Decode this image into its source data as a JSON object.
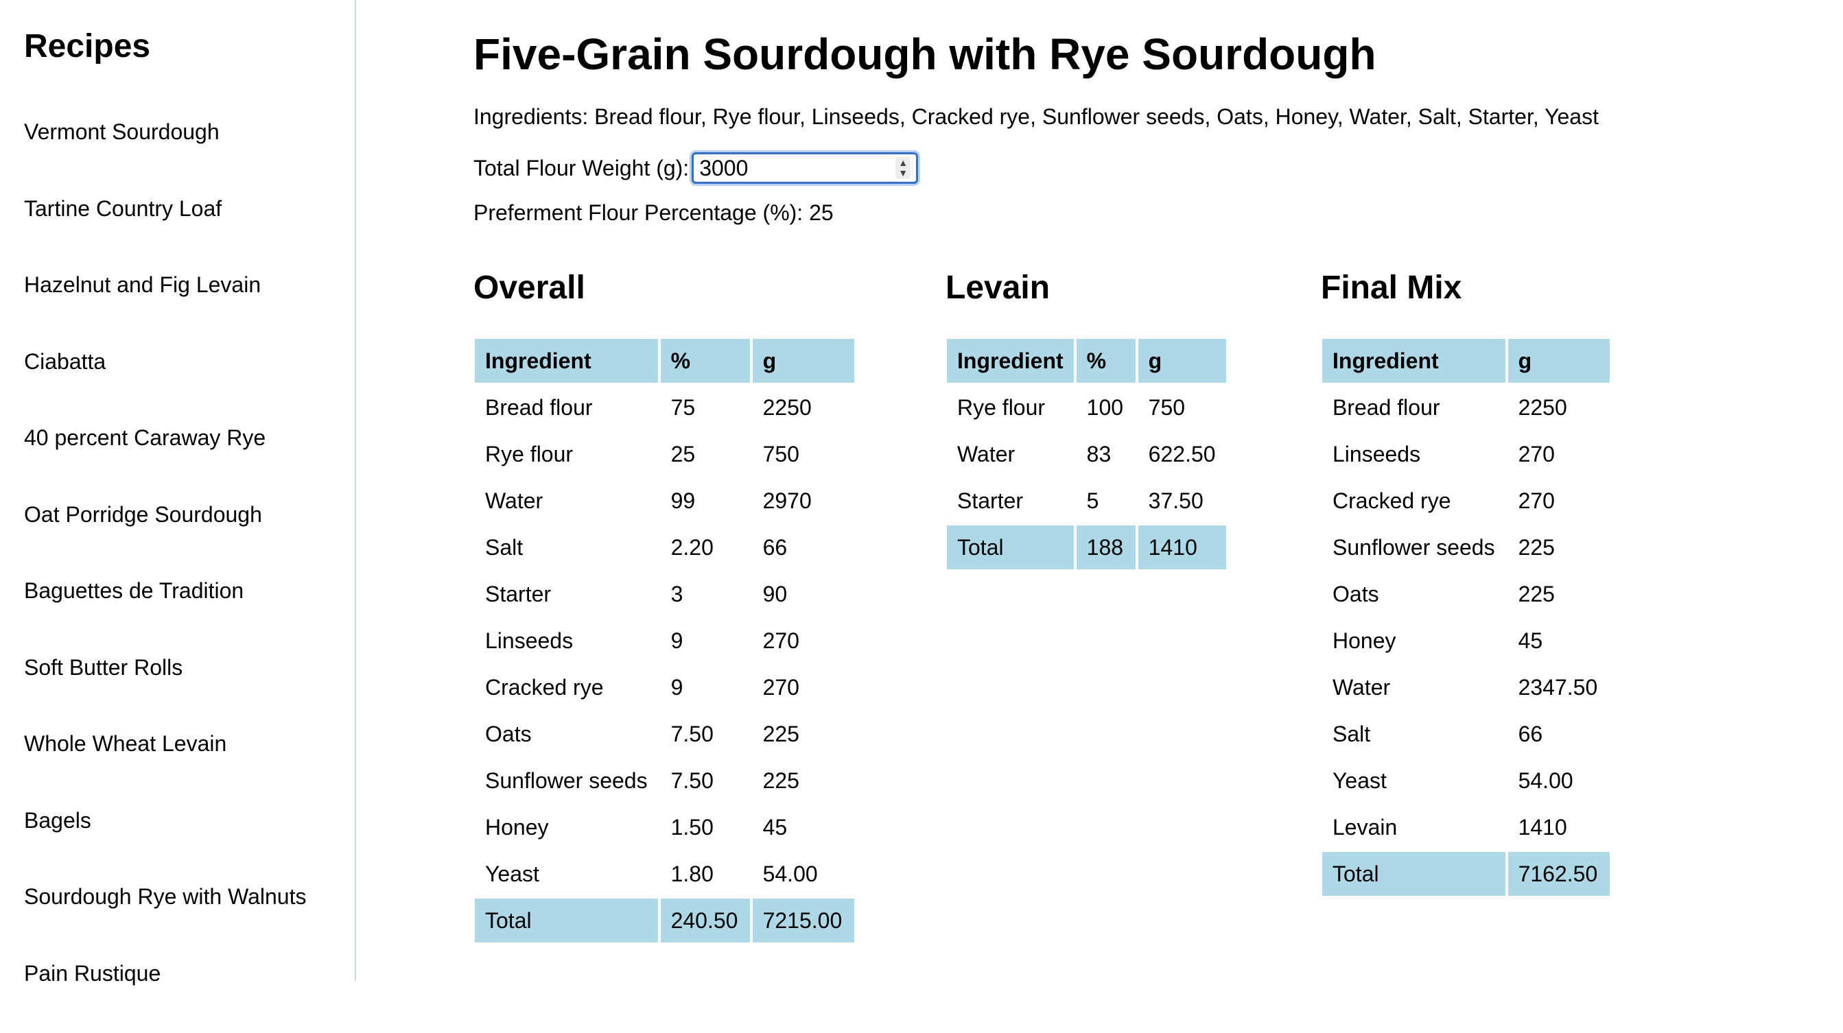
{
  "sidebar": {
    "title": "Recipes",
    "items": [
      "Vermont Sourdough",
      "Tartine Country Loaf",
      "Hazelnut and Fig Levain",
      "Ciabatta",
      "40 percent Caraway Rye",
      "Oat Porridge Sourdough",
      "Baguettes de Tradition",
      "Soft Butter Rolls",
      "Whole Wheat Levain",
      "Bagels",
      "Sourdough Rye with Walnuts",
      "Pain Rustique"
    ]
  },
  "main": {
    "title": "Five-Grain Sourdough with Rye Sourdough",
    "ingredients_text": "Ingredients: Bread flour, Rye flour, Linseeds, Cracked rye, Sunflower seeds, Oats, Honey, Water, Salt, Starter, Yeast",
    "flour_weight_label": "Total Flour Weight (g):",
    "flour_weight_value": "3000",
    "preferment_text": "Preferment Flour Percentage (%): 25"
  },
  "overall": {
    "title": "Overall",
    "headers": [
      "Ingredient",
      "%",
      "g"
    ],
    "rows": [
      [
        "Bread flour",
        "75",
        "2250"
      ],
      [
        "Rye flour",
        "25",
        "750"
      ],
      [
        "Water",
        "99",
        "2970"
      ],
      [
        "Salt",
        "2.20",
        "66"
      ],
      [
        "Starter",
        "3",
        "90"
      ],
      [
        "Linseeds",
        "9",
        "270"
      ],
      [
        "Cracked rye",
        "9",
        "270"
      ],
      [
        "Oats",
        "7.50",
        "225"
      ],
      [
        "Sunflower seeds",
        "7.50",
        "225"
      ],
      [
        "Honey",
        "1.50",
        "45"
      ],
      [
        "Yeast",
        "1.80",
        "54.00"
      ]
    ],
    "total": [
      "Total",
      "240.50",
      "7215.00"
    ]
  },
  "levain": {
    "title": "Levain",
    "headers": [
      "Ingredient",
      "%",
      "g"
    ],
    "rows": [
      [
        "Rye flour",
        "100",
        "750"
      ],
      [
        "Water",
        "83",
        "622.50"
      ],
      [
        "Starter",
        "5",
        "37.50"
      ]
    ],
    "total": [
      "Total",
      "188",
      "1410"
    ]
  },
  "final_mix": {
    "title": "Final Mix",
    "headers": [
      "Ingredient",
      "g"
    ],
    "rows": [
      [
        "Bread flour",
        "2250"
      ],
      [
        "Linseeds",
        "270"
      ],
      [
        "Cracked rye",
        "270"
      ],
      [
        "Sunflower seeds",
        "225"
      ],
      [
        "Oats",
        "225"
      ],
      [
        "Honey",
        "45"
      ],
      [
        "Water",
        "2347.50"
      ],
      [
        "Salt",
        "66"
      ],
      [
        "Yeast",
        "54.00"
      ],
      [
        "Levain",
        "1410"
      ]
    ],
    "total": [
      "Total",
      "7162.50"
    ]
  }
}
